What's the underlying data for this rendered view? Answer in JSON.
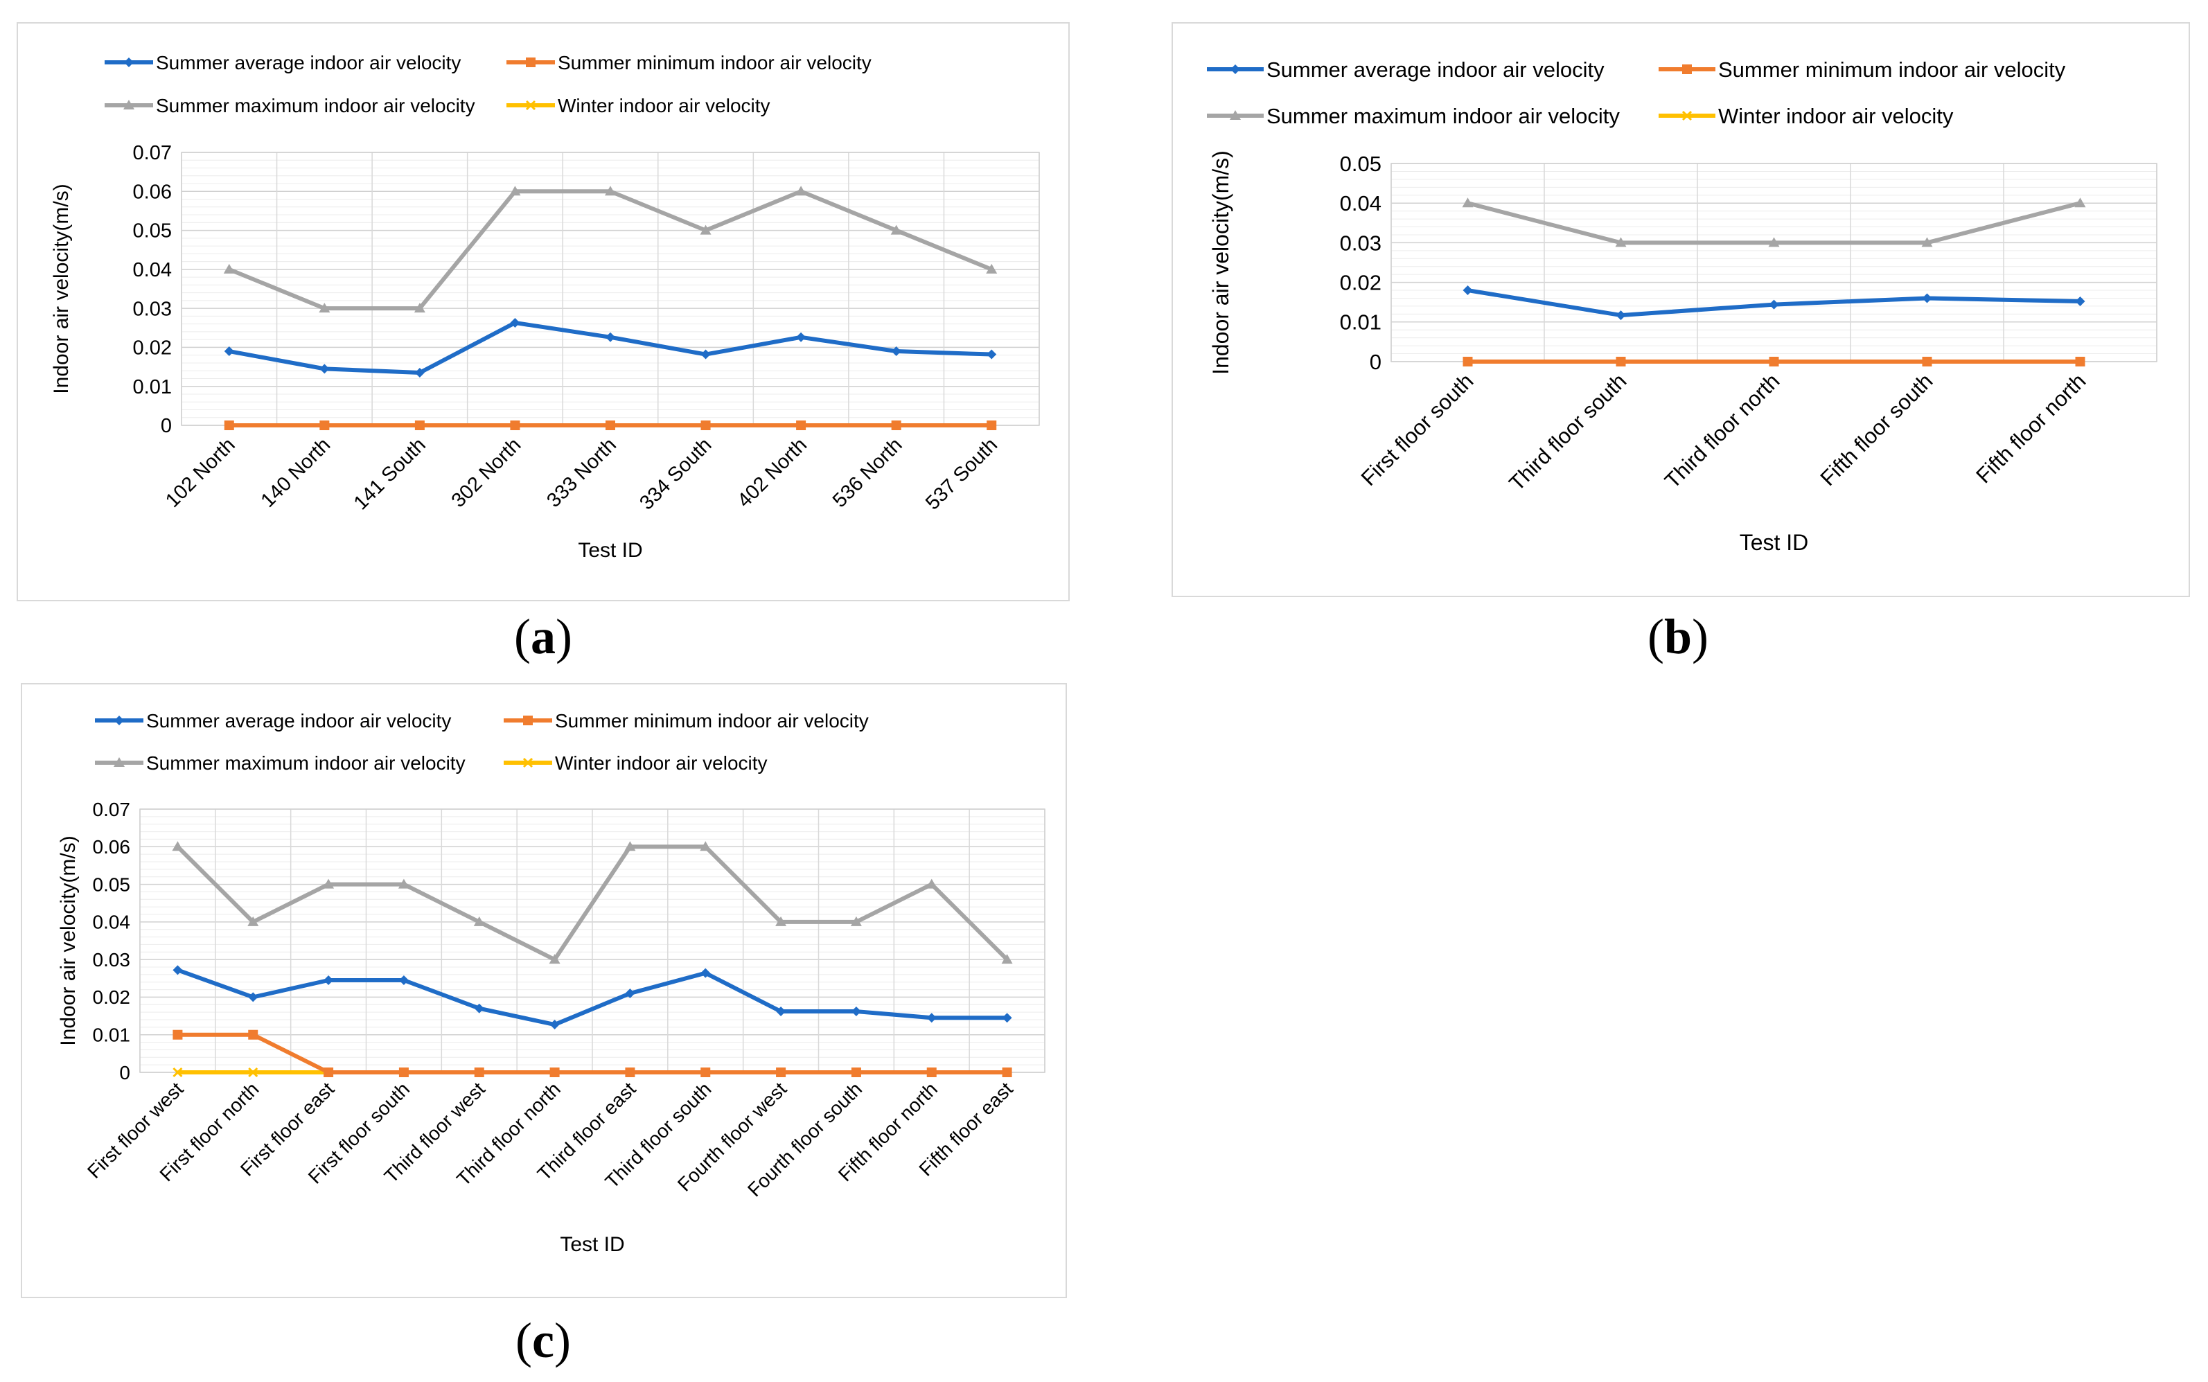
{
  "panels": [
    {
      "label": "a",
      "caption": {
        "open": "(",
        "letter": "a",
        "close": ")"
      },
      "chart_data": {
        "type": "line",
        "title": "",
        "xlabel": "Test ID",
        "ylabel": "Indoor air velocity(m/s)",
        "ylim": [
          0,
          0.07
        ],
        "yticks": [
          "0",
          "0.01",
          "0.02",
          "0.03",
          "0.04",
          "0.05",
          "0.06",
          "0.07"
        ],
        "grid": true,
        "legend": "top",
        "categories": [
          "102 North",
          "140 North",
          "141 South",
          "302 North",
          "333 North",
          "334 South",
          "402 North",
          "536 North",
          "537 South"
        ],
        "series": [
          {
            "name": "Summer average indoor air velocity",
            "color": "#1f6cc7",
            "marker": "diamond",
            "values": [
              0.019,
              0.0145,
              0.0135,
              0.0263,
              0.0226,
              0.0182,
              0.0226,
              0.019,
              0.0182
            ]
          },
          {
            "name": "Summer minimum indoor air velocity",
            "color": "#f07c2e",
            "marker": "square",
            "values": [
              0,
              0,
              0,
              0,
              0,
              0,
              0,
              0,
              0
            ]
          },
          {
            "name": "Summer maximum indoor air velocity",
            "color": "#a5a5a5",
            "marker": "triangle",
            "values": [
              0.04,
              0.03,
              0.03,
              0.06,
              0.06,
              0.05,
              0.06,
              0.05,
              0.04
            ]
          },
          {
            "name": "Winter indoor air velocity",
            "color": "#ffc000",
            "marker": "x",
            "values": [
              0,
              0,
              0,
              0,
              0,
              0,
              0,
              0,
              0
            ]
          }
        ]
      }
    },
    {
      "label": "b",
      "caption": {
        "open": "(",
        "letter": "b",
        "close": ")"
      },
      "chart_data": {
        "type": "line",
        "title": "",
        "xlabel": "Test ID",
        "ylabel": "Indoor air velocity(m/s)",
        "ylim": [
          0,
          0.05
        ],
        "yticks": [
          "0",
          "0.01",
          "0.02",
          "0.03",
          "0.04",
          "0.05"
        ],
        "grid": true,
        "legend": "top",
        "categories": [
          "First floor south",
          "Third floor south",
          "Third floor north",
          "Fifth floor south",
          "Fifth floor north"
        ],
        "series": [
          {
            "name": "Summer average indoor air velocity",
            "color": "#1f6cc7",
            "marker": "diamond",
            "values": [
              0.018,
              0.0117,
              0.0144,
              0.016,
              0.0152
            ]
          },
          {
            "name": "Summer minimum indoor air velocity",
            "color": "#f07c2e",
            "marker": "square",
            "values": [
              0,
              0,
              0,
              0,
              0
            ]
          },
          {
            "name": "Summer maximum indoor air velocity",
            "color": "#a5a5a5",
            "marker": "triangle",
            "values": [
              0.04,
              0.03,
              0.03,
              0.03,
              0.04
            ]
          },
          {
            "name": "Winter indoor air velocity",
            "color": "#ffc000",
            "marker": "x",
            "values": [
              0,
              0,
              0,
              0,
              0
            ]
          }
        ]
      }
    },
    {
      "label": "c",
      "caption": {
        "open": "(",
        "letter": "c",
        "close": ")"
      },
      "chart_data": {
        "type": "line",
        "title": "",
        "xlabel": "Test ID",
        "ylabel": "Indoor air velocity(m/s)",
        "ylim": [
          0,
          0.07
        ],
        "yticks": [
          "0",
          "0.01",
          "0.02",
          "0.03",
          "0.04",
          "0.05",
          "0.06",
          "0.07"
        ],
        "grid": true,
        "legend": "top",
        "categories": [
          "First floor west",
          "First floor north",
          "First floor east",
          "First floor south",
          "Third floor west",
          "Third floor north",
          "Third floor east",
          "Third floor south",
          "Fourth floor west",
          "Fourth floor south",
          "Fifth floor north",
          "Fifth floor east"
        ],
        "series": [
          {
            "name": "Summer average indoor air velocity",
            "color": "#1f6cc7",
            "marker": "diamond",
            "values": [
              0.0272,
              0.02,
              0.0245,
              0.0245,
              0.017,
              0.0127,
              0.021,
              0.0264,
              0.0162,
              0.0162,
              0.0145,
              0.0145
            ]
          },
          {
            "name": "Summer minimum indoor air velocity",
            "color": "#f07c2e",
            "marker": "square",
            "values": [
              0.01,
              0.01,
              0,
              0,
              0,
              0,
              0,
              0,
              0,
              0,
              0,
              0
            ]
          },
          {
            "name": "Summer maximum indoor air velocity",
            "color": "#a5a5a5",
            "marker": "triangle",
            "values": [
              0.06,
              0.04,
              0.05,
              0.05,
              0.04,
              0.03,
              0.06,
              0.06,
              0.04,
              0.04,
              0.05,
              0.03
            ]
          },
          {
            "name": "Winter indoor air velocity",
            "color": "#ffc000",
            "marker": "x",
            "values": [
              0,
              0,
              0,
              0,
              0,
              0,
              0,
              0,
              0,
              0,
              0,
              0
            ]
          }
        ]
      }
    }
  ]
}
